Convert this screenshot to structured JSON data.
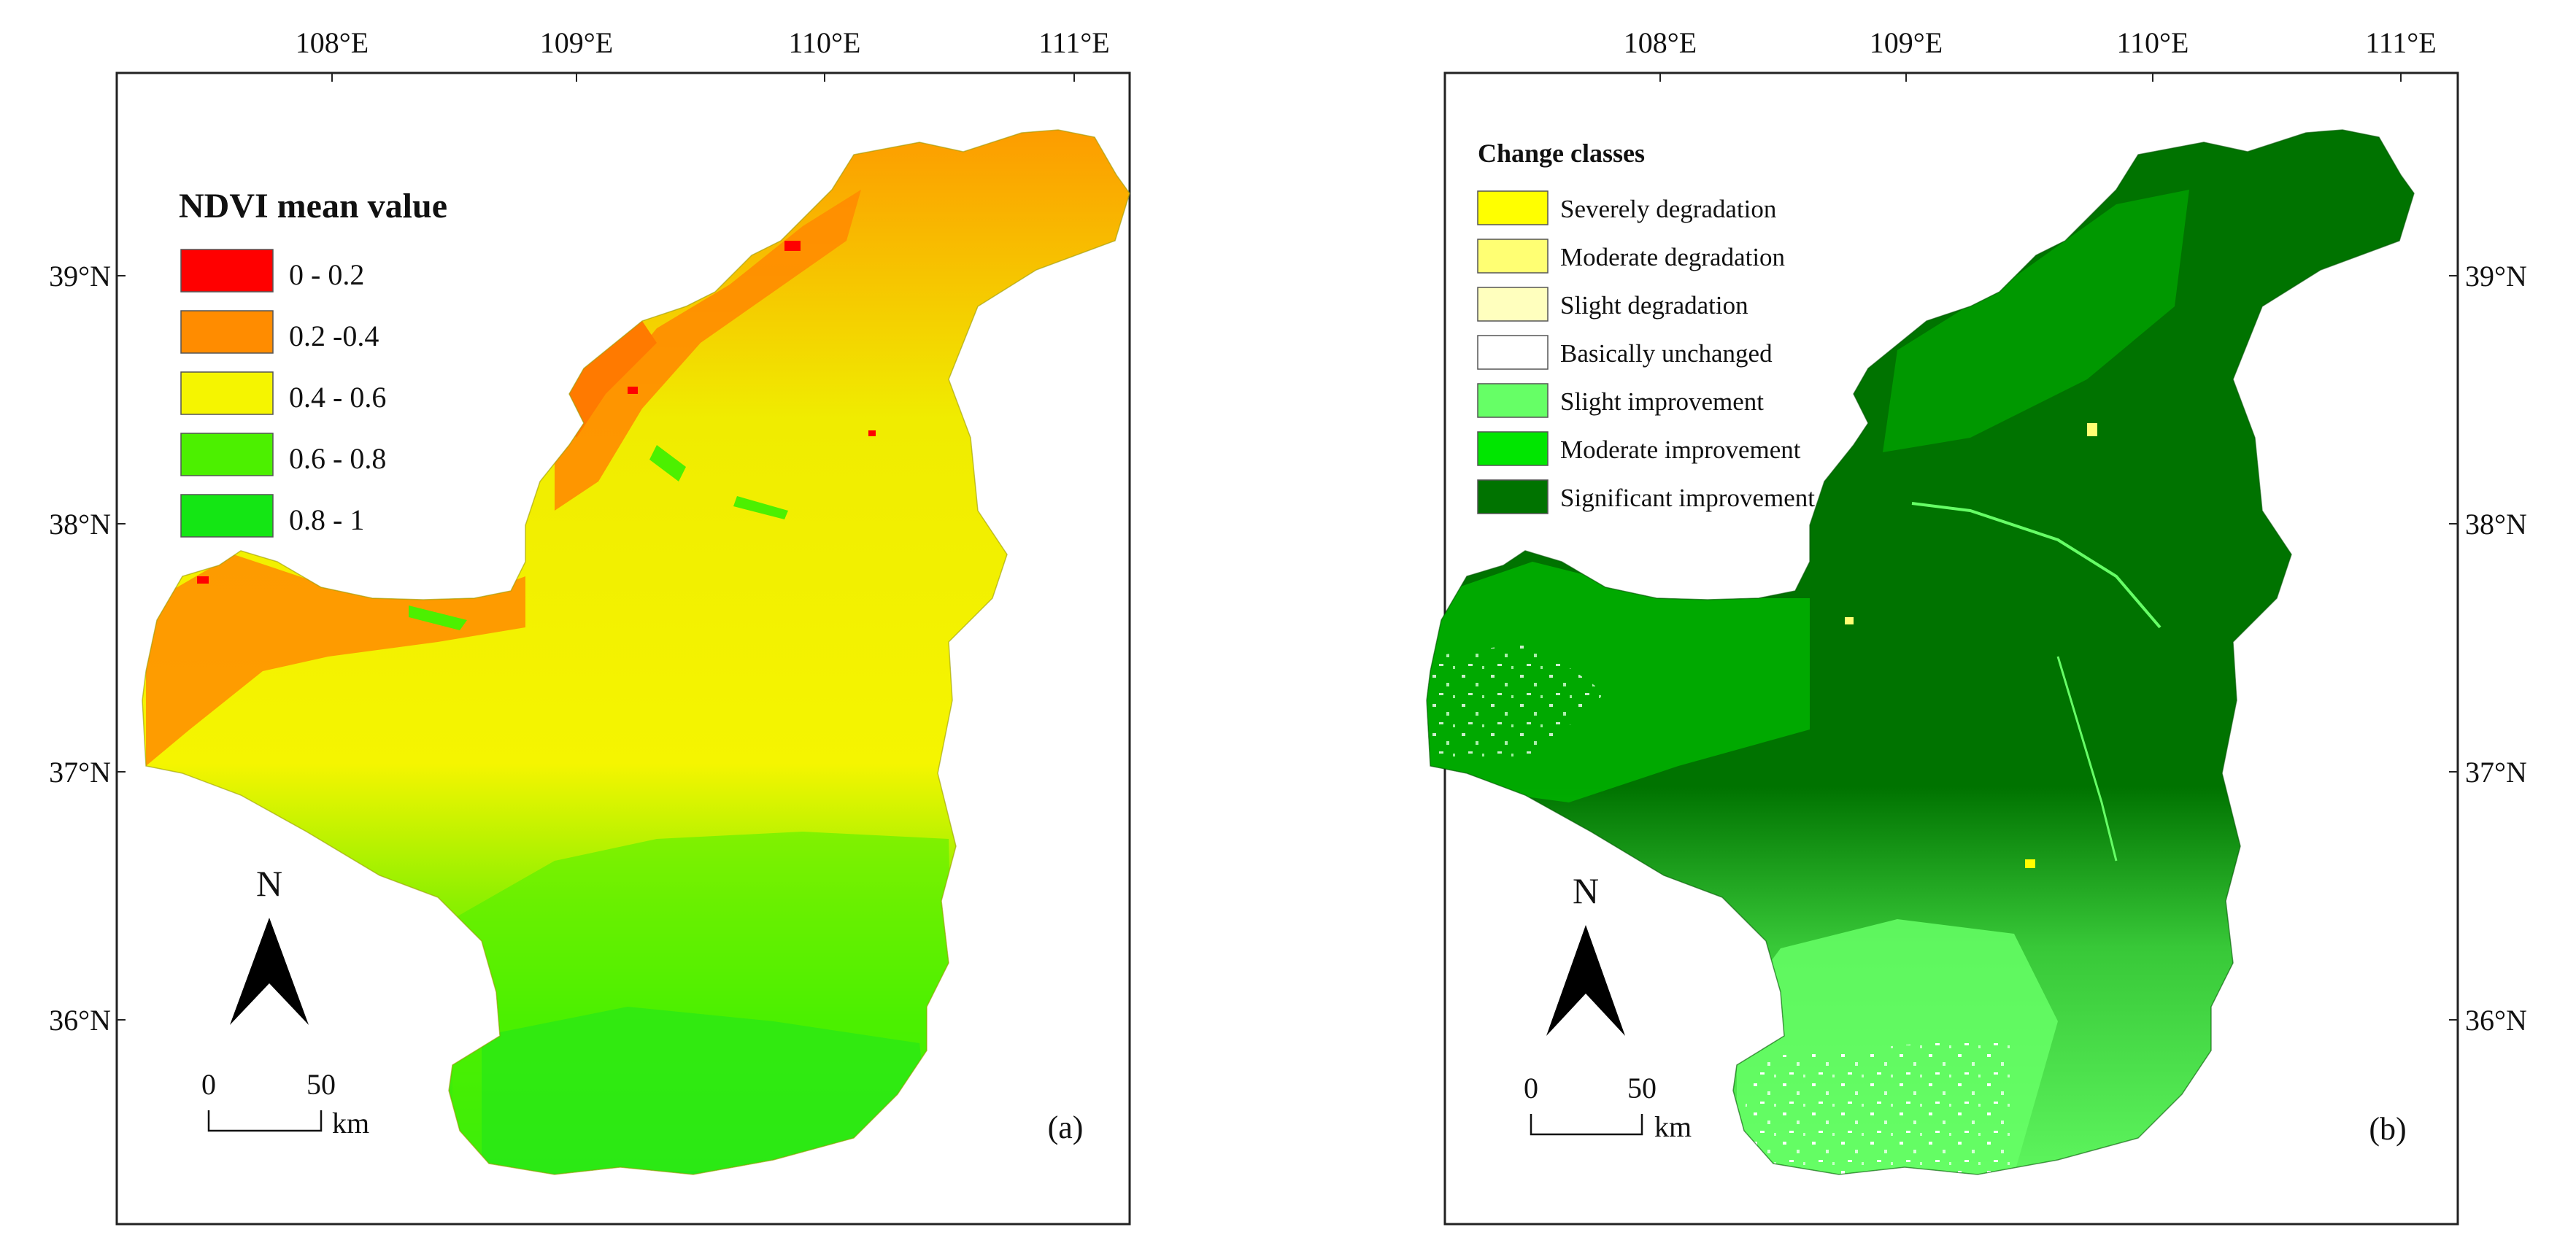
{
  "panel_a": {
    "x_ticks": [
      "108°E",
      "109°E",
      "110°E",
      "111°E"
    ],
    "y_ticks": [
      "39°N",
      "38°N",
      "37°N",
      "36°N"
    ],
    "legend": {
      "title": "NDVI mean value",
      "items": [
        {
          "label": "0 - 0.2",
          "color": "#ff0000"
        },
        {
          "label": "0.2 -0.4",
          "color": "#ff8c00"
        },
        {
          "label": "0.4 - 0.6",
          "color": "#f5f500"
        },
        {
          "label": "0.6 - 0.8",
          "color": "#4cf000"
        },
        {
          "label": "0.8 - 1",
          "color": "#14e614"
        }
      ]
    },
    "north_label": "N",
    "scale": {
      "zero": "0",
      "fifty": "50",
      "unit": "km"
    },
    "panel_label": "(a)"
  },
  "panel_b": {
    "x_ticks": [
      "108°E",
      "109°E",
      "110°E",
      "111°E"
    ],
    "y_ticks": [
      "39°N",
      "38°N",
      "37°N",
      "36°N"
    ],
    "legend": {
      "title": "Change classes",
      "items": [
        {
          "label": "Severely degradation",
          "color": "#ffff00"
        },
        {
          "label": "Moderate degradation",
          "color": "#ffff73"
        },
        {
          "label": "Slight degradation",
          "color": "#ffffbe"
        },
        {
          "label": "Basically unchanged",
          "color": "#ffffff"
        },
        {
          "label": "Slight improvement",
          "color": "#66ff66"
        },
        {
          "label": "Moderate improvement",
          "color": "#00e600"
        },
        {
          "label": "Significant improvement",
          "color": "#007300"
        }
      ]
    },
    "north_label": "N",
    "scale": {
      "zero": "0",
      "fifty": "50",
      "unit": "km"
    },
    "panel_label": "(b)"
  }
}
